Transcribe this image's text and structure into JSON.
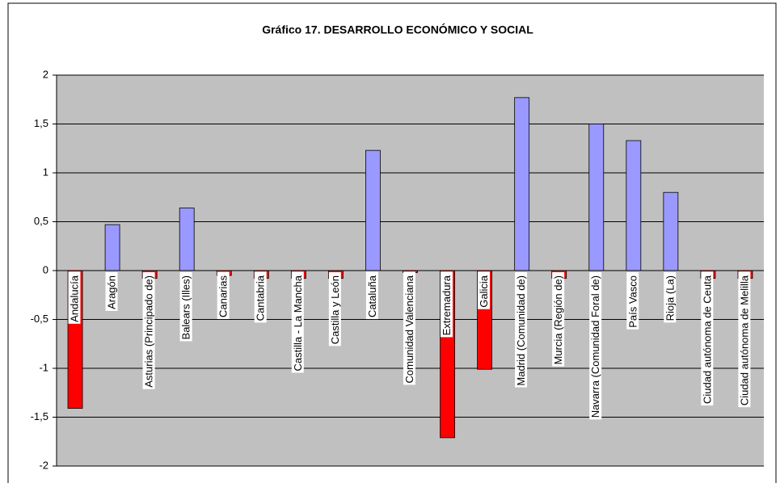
{
  "chart_data": {
    "type": "bar",
    "title": "Gráfico 17. DESARROLLO ECONÓMICO Y SOCIAL",
    "categories": [
      "Andalucía",
      "Aragón",
      "Asturias (Principado de)",
      "Balears (Illes)",
      "Canarias",
      "Cantabria",
      "Castilla - La Mancha",
      "Castilla y León",
      "Cataluña",
      "Comunidad Valenciana",
      "Extremadura",
      "Galicia",
      "Madrid (Comunidad de)",
      "Murcia (Región de)",
      "Navarra (Comunidad Foral de)",
      "País Vasco",
      "Rioja (La)",
      "Ciudad autónoma de Ceuta",
      "Ciudad autónoma de Melilla"
    ],
    "values": [
      -1.41,
      0.47,
      -0.08,
      0.64,
      -0.05,
      -0.08,
      -0.08,
      -0.08,
      1.23,
      -0.02,
      -1.71,
      -1.01,
      1.77,
      -0.08,
      1.5,
      1.33,
      0.8,
      -0.08,
      -0.08
    ],
    "positive_color": "#9999ff",
    "negative_color": "#ff0000",
    "ylim": [
      -2,
      2
    ],
    "yticks": [
      -2,
      {
        "value": -1.5,
        "label": "-1,5"
      },
      -1,
      {
        "value": -0.5,
        "label": "-0,5"
      },
      0,
      {
        "value": 0.5,
        "label": "0,5"
      },
      1,
      {
        "value": 1.5,
        "label": "1,5"
      },
      2
    ],
    "grid": true
  }
}
